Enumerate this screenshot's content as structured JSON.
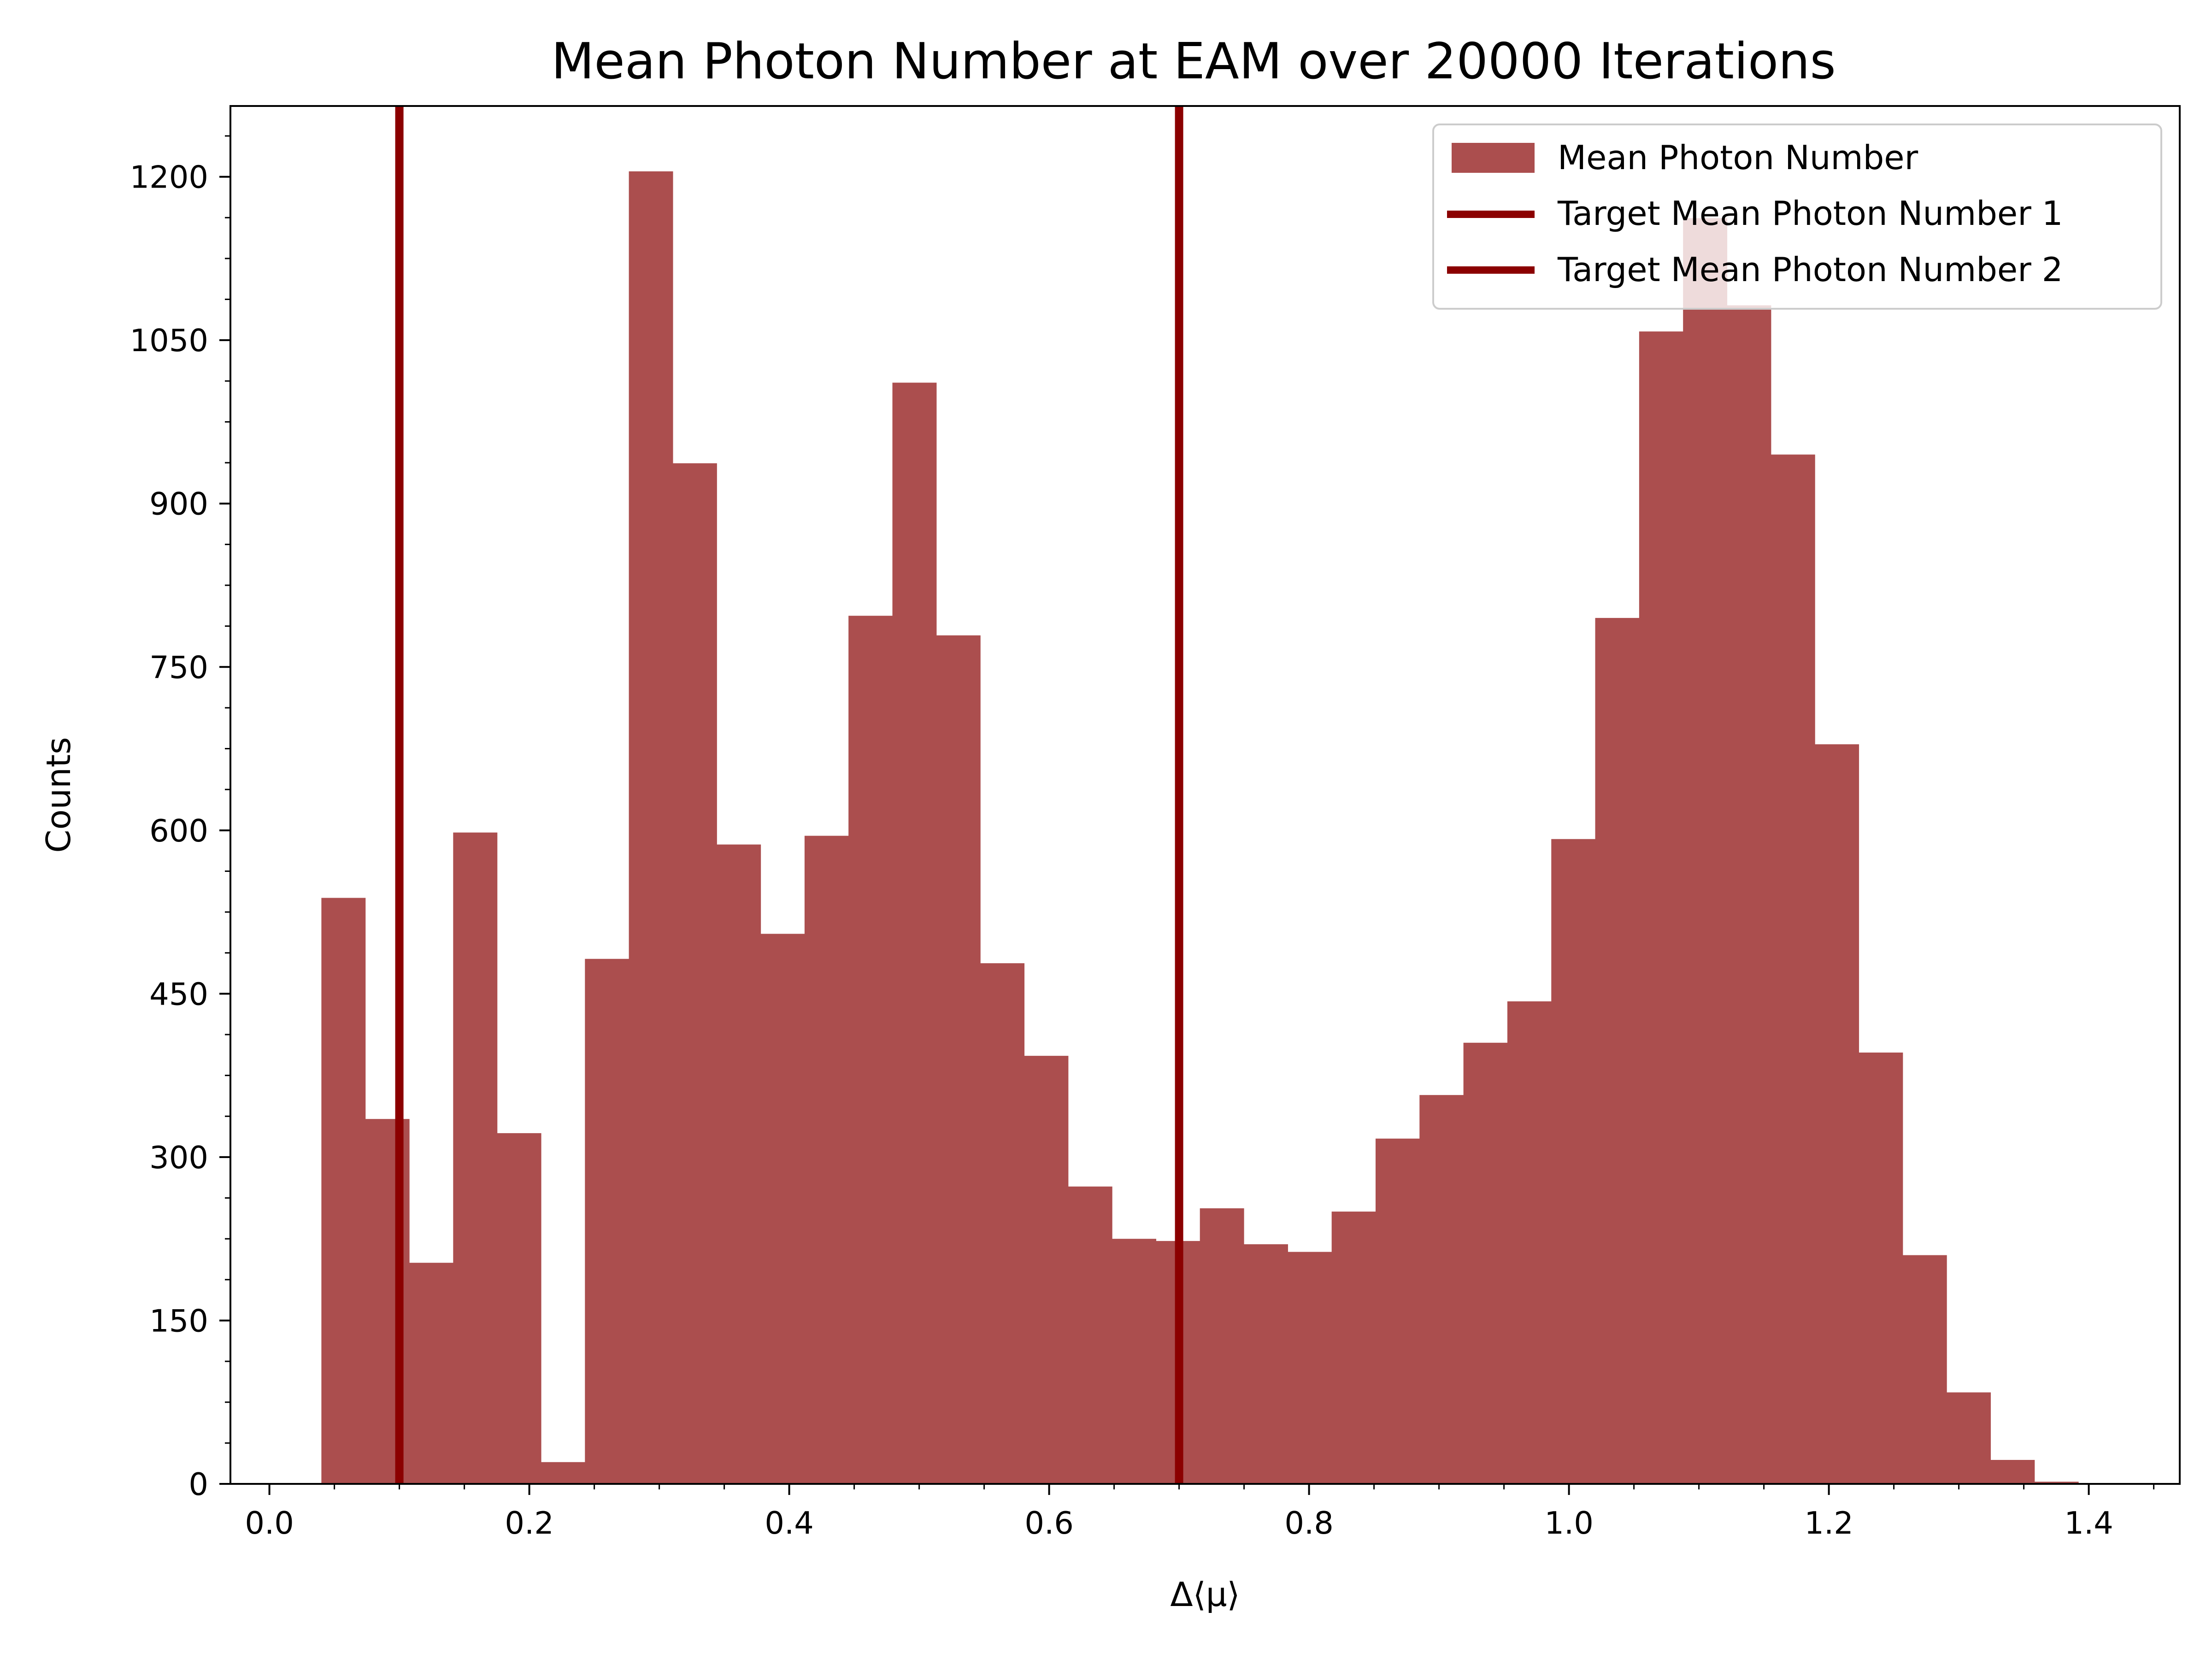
{
  "chart_data": {
    "type": "bar",
    "title": "Mean Photon Number at EAM over 20000 Iterations",
    "xlabel": "Δ⟨μ⟩",
    "ylabel": "Counts",
    "xlim": [
      -0.03,
      1.47
    ],
    "ylim": [
      0,
      1265
    ],
    "xticks": [
      "0.0",
      "0.2",
      "0.4",
      "0.6",
      "0.8",
      "1.0",
      "1.2",
      "1.4"
    ],
    "yticks": [
      "0",
      "150",
      "300",
      "450",
      "600",
      "750",
      "900",
      "1050",
      "1200"
    ],
    "grid": false,
    "legend_position": "top-right",
    "bar_color": "#ab4e4e",
    "line_color": "#8b0000",
    "histogram": {
      "name": "Mean Photon Number",
      "bin_start": 0.04,
      "bin_width": 0.0338,
      "counts": [
        538,
        335,
        203,
        598,
        322,
        20,
        482,
        1205,
        937,
        587,
        505,
        595,
        797,
        1011,
        779,
        478,
        393,
        273,
        225,
        223,
        253,
        220,
        213,
        250,
        317,
        357,
        405,
        443,
        592,
        795,
        1058,
        1162,
        1082,
        945,
        679,
        396,
        210,
        84,
        22,
        2
      ]
    },
    "vlines": [
      {
        "name": "Target Mean Photon Number 1",
        "x": 0.1
      },
      {
        "name": "Target Mean Photon Number 2",
        "x": 0.7
      }
    ]
  }
}
